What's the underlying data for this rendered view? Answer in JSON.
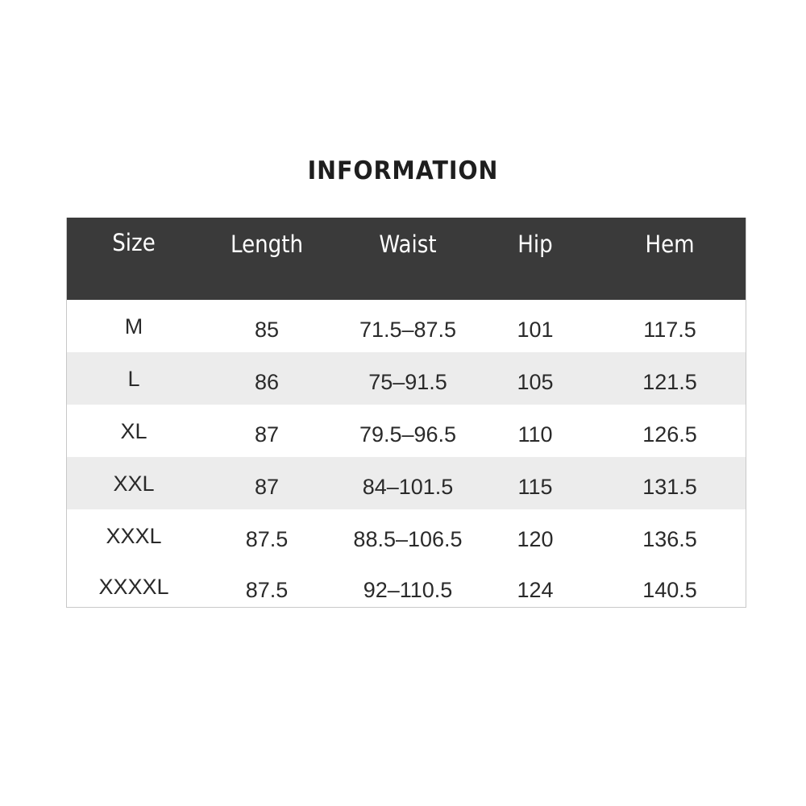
{
  "title": "INFORMATION",
  "table": {
    "headers": [
      "Size",
      "Length",
      "Waist",
      "Hip",
      "Hem"
    ],
    "rows": [
      [
        "M",
        "85",
        "71.5–87.5",
        "101",
        "117.5"
      ],
      [
        "L",
        "86",
        "75–91.5",
        "105",
        "121.5"
      ],
      [
        "XL",
        "87",
        "79.5–96.5",
        "110",
        "126.5"
      ],
      [
        "XXL",
        "87",
        "84–101.5",
        "115",
        "131.5"
      ],
      [
        "XXXL",
        "87.5",
        "88.5–106.5",
        "120",
        "136.5"
      ],
      [
        "XXXXL",
        "87.5",
        "92–110.5",
        "124",
        "140.5"
      ]
    ]
  },
  "colors": {
    "header_bg": "#3a3a3a",
    "alt_row_bg": "#ececec"
  }
}
